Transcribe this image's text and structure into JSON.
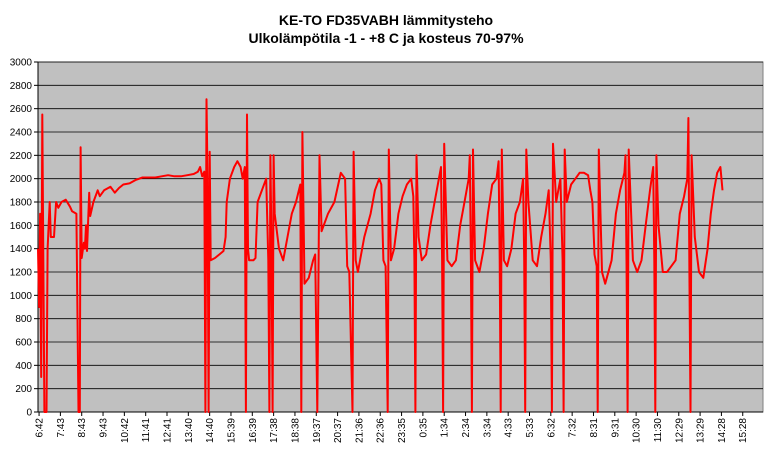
{
  "chart_data": {
    "type": "line",
    "title": "KE-TO FD35VABH lämmitysteho",
    "subtitle": "Ulkolämpötila -1 - +8 C ja kosteus 70-97%",
    "xlabel": "",
    "ylabel": "",
    "ylim": [
      0,
      3000
    ],
    "yticks": [
      0,
      200,
      400,
      600,
      800,
      1000,
      1200,
      1400,
      1600,
      1800,
      2000,
      2200,
      2400,
      2600,
      2800,
      3000
    ],
    "xlabels": [
      "6:42",
      "7:43",
      "8:43",
      "9:43",
      "10:42",
      "11:41",
      "12:41",
      "13:40",
      "14:40",
      "15:39",
      "16:39",
      "17:38",
      "18:38",
      "19:37",
      "20:37",
      "21:36",
      "22:36",
      "23:35",
      "0:35",
      "1:34",
      "2:34",
      "3:34",
      "4:33",
      "5:33",
      "6:32",
      "7:32",
      "8:31",
      "9:31",
      "10:30",
      "11:30",
      "12:29",
      "13:29",
      "14:28",
      "15:28"
    ],
    "grid": true,
    "legend": "none",
    "series_color": "#ff0000",
    "plot_background": "#c0c0c0",
    "series": [
      {
        "values": [
          [
            0,
            1400
          ],
          [
            0.05,
            900
          ],
          [
            0.1,
            1700
          ],
          [
            0.15,
            300
          ],
          [
            0.2,
            2550
          ],
          [
            0.3,
            0
          ],
          [
            0.4,
            0
          ],
          [
            0.45,
            1400
          ],
          [
            0.55,
            1800
          ],
          [
            0.6,
            1500
          ],
          [
            0.75,
            1500
          ],
          [
            0.85,
            1800
          ],
          [
            0.95,
            1750
          ],
          [
            1.1,
            1800
          ],
          [
            1.3,
            1820
          ],
          [
            1.5,
            1760
          ],
          [
            1.6,
            1720
          ],
          [
            1.8,
            1700
          ],
          [
            1.9,
            0
          ],
          [
            1.96,
            0
          ],
          [
            2.0,
            2270
          ],
          [
            2.05,
            1320
          ],
          [
            2.15,
            1450
          ],
          [
            2.2,
            1400
          ],
          [
            2.25,
            1600
          ],
          [
            2.3,
            1380
          ],
          [
            2.4,
            1880
          ],
          [
            2.45,
            1680
          ],
          [
            2.6,
            1800
          ],
          [
            2.8,
            1900
          ],
          [
            2.9,
            1850
          ],
          [
            3.1,
            1900
          ],
          [
            3.4,
            1930
          ],
          [
            3.6,
            1880
          ],
          [
            3.8,
            1920
          ],
          [
            4.0,
            1950
          ],
          [
            4.3,
            1960
          ],
          [
            4.6,
            1990
          ],
          [
            4.9,
            2010
          ],
          [
            5.2,
            2010
          ],
          [
            5.5,
            2010
          ],
          [
            5.8,
            2020
          ],
          [
            6.1,
            2030
          ],
          [
            6.4,
            2020
          ],
          [
            6.7,
            2020
          ],
          [
            7.0,
            2030
          ],
          [
            7.3,
            2040
          ],
          [
            7.5,
            2060
          ],
          [
            7.6,
            2100
          ],
          [
            7.7,
            2020
          ],
          [
            7.8,
            2060
          ],
          [
            7.85,
            0
          ],
          [
            7.9,
            2680
          ],
          [
            7.95,
            2020
          ],
          [
            8.0,
            0
          ],
          [
            8.05,
            2230
          ],
          [
            8.1,
            1300
          ],
          [
            8.3,
            1320
          ],
          [
            8.5,
            1350
          ],
          [
            8.7,
            1380
          ],
          [
            8.8,
            1500
          ],
          [
            8.85,
            1800
          ],
          [
            9.0,
            2000
          ],
          [
            9.2,
            2100
          ],
          [
            9.35,
            2150
          ],
          [
            9.5,
            2100
          ],
          [
            9.6,
            2000
          ],
          [
            9.7,
            2100
          ],
          [
            9.75,
            0
          ],
          [
            9.8,
            2550
          ],
          [
            9.85,
            1400
          ],
          [
            9.9,
            1300
          ],
          [
            10.1,
            1300
          ],
          [
            10.2,
            1320
          ],
          [
            10.3,
            1800
          ],
          [
            10.5,
            1900
          ],
          [
            10.7,
            2000
          ],
          [
            10.8,
            1300
          ],
          [
            10.85,
            0
          ],
          [
            10.9,
            2200
          ],
          [
            10.95,
            1400
          ],
          [
            11.0,
            0
          ],
          [
            11.05,
            2200
          ],
          [
            11.1,
            1700
          ],
          [
            11.3,
            1400
          ],
          [
            11.5,
            1300
          ],
          [
            11.7,
            1500
          ],
          [
            11.9,
            1700
          ],
          [
            12.1,
            1800
          ],
          [
            12.3,
            1950
          ],
          [
            12.35,
            0
          ],
          [
            12.4,
            2400
          ],
          [
            12.5,
            1100
          ],
          [
            12.7,
            1150
          ],
          [
            12.9,
            1300
          ],
          [
            13.0,
            1350
          ],
          [
            13.1,
            0
          ],
          [
            13.2,
            2200
          ],
          [
            13.3,
            1550
          ],
          [
            13.6,
            1700
          ],
          [
            13.9,
            1800
          ],
          [
            14.2,
            2050
          ],
          [
            14.4,
            2000
          ],
          [
            14.5,
            1250
          ],
          [
            14.6,
            1200
          ],
          [
            14.75,
            0
          ],
          [
            14.8,
            2230
          ],
          [
            14.9,
            1300
          ],
          [
            15.0,
            1200
          ],
          [
            15.3,
            1500
          ],
          [
            15.6,
            1700
          ],
          [
            15.8,
            1900
          ],
          [
            16.0,
            2000
          ],
          [
            16.1,
            1950
          ],
          [
            16.2,
            1300
          ],
          [
            16.3,
            1250
          ],
          [
            16.4,
            0
          ],
          [
            16.45,
            2250
          ],
          [
            16.55,
            1300
          ],
          [
            16.7,
            1400
          ],
          [
            16.9,
            1700
          ],
          [
            17.1,
            1850
          ],
          [
            17.3,
            1950
          ],
          [
            17.5,
            2000
          ],
          [
            17.6,
            1850
          ],
          [
            17.65,
            1300
          ],
          [
            17.7,
            0
          ],
          [
            17.75,
            2200
          ],
          [
            17.85,
            1500
          ],
          [
            18.0,
            1300
          ],
          [
            18.2,
            1350
          ],
          [
            18.4,
            1600
          ],
          [
            18.6,
            1800
          ],
          [
            18.8,
            2000
          ],
          [
            18.9,
            2100
          ],
          [
            18.95,
            1300
          ],
          [
            19.0,
            0
          ],
          [
            19.05,
            2300
          ],
          [
            19.2,
            1300
          ],
          [
            19.4,
            1250
          ],
          [
            19.6,
            1300
          ],
          [
            19.8,
            1600
          ],
          [
            20.0,
            1800
          ],
          [
            20.2,
            2000
          ],
          [
            20.25,
            2200
          ],
          [
            20.3,
            1300
          ],
          [
            20.35,
            0
          ],
          [
            20.4,
            2250
          ],
          [
            20.5,
            1300
          ],
          [
            20.7,
            1200
          ],
          [
            20.9,
            1400
          ],
          [
            21.1,
            1700
          ],
          [
            21.3,
            1950
          ],
          [
            21.5,
            2000
          ],
          [
            21.6,
            2150
          ],
          [
            21.65,
            1300
          ],
          [
            21.7,
            0
          ],
          [
            21.75,
            2250
          ],
          [
            21.85,
            1300
          ],
          [
            22.0,
            1250
          ],
          [
            22.2,
            1400
          ],
          [
            22.4,
            1700
          ],
          [
            22.6,
            1800
          ],
          [
            22.75,
            2000
          ],
          [
            22.8,
            1300
          ],
          [
            22.85,
            0
          ],
          [
            22.9,
            2250
          ],
          [
            23.0,
            1800
          ],
          [
            23.2,
            1300
          ],
          [
            23.4,
            1250
          ],
          [
            23.6,
            1500
          ],
          [
            23.8,
            1700
          ],
          [
            23.95,
            1900
          ],
          [
            24.05,
            1300
          ],
          [
            24.1,
            0
          ],
          [
            24.15,
            2300
          ],
          [
            24.3,
            1800
          ],
          [
            24.5,
            2000
          ],
          [
            24.6,
            1300
          ],
          [
            24.65,
            0
          ],
          [
            24.7,
            2250
          ],
          [
            24.8,
            1800
          ],
          [
            25.0,
            1950
          ],
          [
            25.2,
            2000
          ],
          [
            25.4,
            2050
          ],
          [
            25.6,
            2050
          ],
          [
            25.8,
            2030
          ],
          [
            25.9,
            1900
          ],
          [
            26.0,
            1800
          ],
          [
            26.1,
            1350
          ],
          [
            26.2,
            1250
          ],
          [
            26.25,
            0
          ],
          [
            26.3,
            2250
          ],
          [
            26.45,
            1200
          ],
          [
            26.6,
            1100
          ],
          [
            26.9,
            1300
          ],
          [
            27.1,
            1700
          ],
          [
            27.3,
            1900
          ],
          [
            27.5,
            2050
          ],
          [
            27.55,
            2200
          ],
          [
            27.6,
            1300
          ],
          [
            27.65,
            0
          ],
          [
            27.7,
            2250
          ],
          [
            27.9,
            1300
          ],
          [
            28.1,
            1200
          ],
          [
            28.3,
            1300
          ],
          [
            28.5,
            1600
          ],
          [
            28.7,
            1900
          ],
          [
            28.85,
            2100
          ],
          [
            28.9,
            1300
          ],
          [
            28.95,
            0
          ],
          [
            29.0,
            2200
          ],
          [
            29.1,
            1600
          ],
          [
            29.3,
            1200
          ],
          [
            29.5,
            1200
          ],
          [
            29.7,
            1250
          ],
          [
            29.9,
            1300
          ],
          [
            30.1,
            1700
          ],
          [
            30.3,
            1850
          ],
          [
            30.45,
            2000
          ],
          [
            30.5,
            2520
          ],
          [
            30.55,
            1200
          ],
          [
            30.6,
            0
          ],
          [
            30.65,
            2200
          ],
          [
            30.8,
            1500
          ],
          [
            31.0,
            1200
          ],
          [
            31.2,
            1150
          ],
          [
            31.4,
            1400
          ],
          [
            31.55,
            1700
          ],
          [
            31.7,
            1900
          ],
          [
            31.85,
            2050
          ],
          [
            32.0,
            2100
          ],
          [
            32.1,
            1900
          ]
        ]
      }
    ]
  }
}
